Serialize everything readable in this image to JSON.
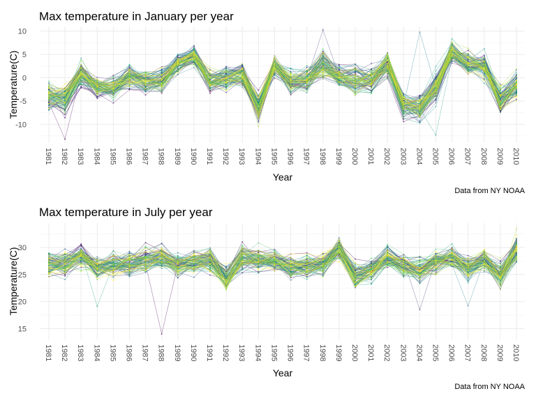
{
  "chart_data": [
    {
      "type": "line",
      "title": "Max temperature in January per year",
      "xlabel": "Year",
      "ylabel": "Temperature(C)",
      "caption": "Data from NY NOAA",
      "x": [
        "1981",
        "1982",
        "1983",
        "1984",
        "1985",
        "1986",
        "1987",
        "1988",
        "1989",
        "1990",
        "1991",
        "1992",
        "1993",
        "1994",
        "1995",
        "1996",
        "1997",
        "1998",
        "1999",
        "2000",
        "2001",
        "2002",
        "2003",
        "2004",
        "2005",
        "2006",
        "2007",
        "2008",
        "2009",
        "2010"
      ],
      "yticks": [
        -10,
        -5,
        0,
        5,
        10
      ],
      "ylim": [
        -14,
        11
      ],
      "grid": true,
      "series_count": 90,
      "means": [
        -4.0,
        -4.5,
        0.8,
        -2.2,
        -2.3,
        0.3,
        -0.8,
        -0.5,
        2.7,
        4.7,
        -0.9,
        -0.1,
        0.6,
        -6.2,
        2.6,
        -0.8,
        -0.2,
        2.8,
        0.2,
        -0.6,
        -0.3,
        2.9,
        -5.8,
        -6.6,
        -2.1,
        5.6,
        3.2,
        2.7,
        -4.7,
        -1.6
      ],
      "spread": [
        2.0,
        2.2,
        1.8,
        1.5,
        1.7,
        1.8,
        1.7,
        1.8,
        1.6,
        1.5,
        1.8,
        1.7,
        1.9,
        2.0,
        1.6,
        1.7,
        1.8,
        2.0,
        2.0,
        2.1,
        2.0,
        2.0,
        2.0,
        2.2,
        2.3,
        1.6,
        1.9,
        2.0,
        1.9,
        2.2
      ],
      "outliers": [
        {
          "year": "1982",
          "value": -13.2
        },
        {
          "year": "1998",
          "value": 10.3
        },
        {
          "year": "2004",
          "value": 9.8
        },
        {
          "year": "2005",
          "value": -12.3
        },
        {
          "year": "1994",
          "value": -10.5
        }
      ],
      "palette": [
        "#440154",
        "#46327e",
        "#365c8d",
        "#277f8e",
        "#1fa187",
        "#4ac16d",
        "#a0da39",
        "#fde725"
      ]
    },
    {
      "type": "line",
      "title": "Max temperature in July per year",
      "xlabel": "Year",
      "ylabel": "Temperature(C)",
      "caption": "Data from NY NOAA",
      "x": [
        "1981",
        "1982",
        "1983",
        "1984",
        "1985",
        "1986",
        "1987",
        "1988",
        "1989",
        "1990",
        "1991",
        "1992",
        "1993",
        "1994",
        "1995",
        "1996",
        "1997",
        "1998",
        "1999",
        "2000",
        "2001",
        "2002",
        "2003",
        "2004",
        "2005",
        "2006",
        "2007",
        "2008",
        "2009",
        "2010"
      ],
      "yticks": [
        15,
        20,
        25,
        30
      ],
      "ylim": [
        13,
        34.5
      ],
      "grid": true,
      "series_count": 90,
      "means": [
        27.0,
        27.1,
        28.4,
        26.4,
        26.9,
        26.6,
        27.6,
        28.1,
        26.8,
        27.1,
        27.6,
        24.3,
        28.0,
        27.7,
        27.6,
        26.3,
        26.4,
        26.9,
        29.6,
        24.7,
        25.8,
        28.0,
        26.6,
        25.8,
        27.2,
        28.2,
        26.1,
        27.6,
        24.9,
        29.4
      ],
      "spread": [
        1.6,
        1.6,
        1.7,
        1.5,
        1.6,
        1.6,
        1.6,
        1.5,
        1.5,
        1.5,
        1.6,
        1.6,
        1.7,
        1.7,
        1.5,
        1.5,
        1.6,
        1.6,
        1.5,
        1.6,
        1.6,
        1.6,
        1.5,
        1.5,
        1.5,
        1.5,
        1.6,
        1.5,
        1.6,
        1.8
      ],
      "outliers": [
        {
          "year": "1988",
          "value": 14.0
        },
        {
          "year": "2004",
          "value": 18.5
        },
        {
          "year": "2007",
          "value": 19.2
        },
        {
          "year": "1984",
          "value": 19.1
        },
        {
          "year": "2010",
          "value": 33.5
        }
      ],
      "palette": [
        "#440154",
        "#46327e",
        "#365c8d",
        "#277f8e",
        "#1fa187",
        "#4ac16d",
        "#a0da39",
        "#fde725"
      ]
    }
  ]
}
